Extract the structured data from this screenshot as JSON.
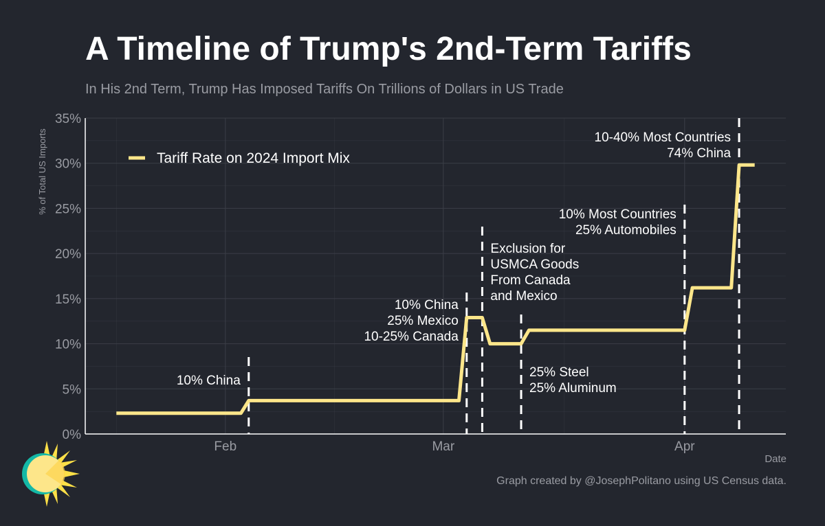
{
  "header": {
    "title": "A Timeline of Trump's 2nd-Term Tariffs",
    "subtitle": "In His 2nd Term, Trump Has Imposed Tariffs On Trillions of Dollars in US Trade"
  },
  "footer": {
    "caption": "Graph created by @JosephPolitano using US Census data."
  },
  "colors": {
    "background": "#23262e",
    "line": "#fde68a",
    "grid": "#3b3e47",
    "axis_text": "#9a9ca3"
  },
  "chart_data": {
    "type": "line",
    "title": "A Timeline of Trump's 2nd-Term Tariffs",
    "xlabel": "Date",
    "ylabel": "% of Total US Imports",
    "xlim": [
      "2025-01-14",
      "2025-04-14"
    ],
    "ylim": [
      0,
      35
    ],
    "y_ticks": [
      0,
      5,
      10,
      15,
      20,
      25,
      30,
      35
    ],
    "y_tick_labels": [
      "0%",
      "5%",
      "10%",
      "15%",
      "20%",
      "25%",
      "30%",
      "35%"
    ],
    "x_ticks": [
      "2025-02-01",
      "2025-03-01",
      "2025-04-01"
    ],
    "x_tick_labels": [
      "Feb",
      "Mar",
      "Apr"
    ],
    "grid": true,
    "legend": {
      "position": "top-left"
    },
    "series": [
      {
        "name": "Tariff Rate on 2024 Import Mix",
        "color": "#fde68a",
        "points": [
          [
            "2025-01-18",
            2.3
          ],
          [
            "2025-02-03",
            2.3
          ],
          [
            "2025-02-04",
            3.7
          ],
          [
            "2025-03-03",
            3.7
          ],
          [
            "2025-03-04",
            12.9
          ],
          [
            "2025-03-06",
            12.9
          ],
          [
            "2025-03-07",
            10.0
          ],
          [
            "2025-03-11",
            10.0
          ],
          [
            "2025-03-12",
            11.5
          ],
          [
            "2025-04-01",
            11.5
          ],
          [
            "2025-04-02",
            16.2
          ],
          [
            "2025-04-07",
            16.2
          ],
          [
            "2025-04-08",
            29.8
          ],
          [
            "2025-04-10",
            29.8
          ]
        ]
      }
    ],
    "annotations": [
      {
        "date": "2025-02-04",
        "lines": [
          "10% China"
        ],
        "align": "left"
      },
      {
        "date": "2025-03-04",
        "lines": [
          "10% China",
          "25% Mexico",
          "10-25% Canada"
        ],
        "align": "left"
      },
      {
        "date": "2025-03-06",
        "lines": [
          "Exclusion for",
          "USMCA Goods",
          "From Canada",
          "and Mexico"
        ],
        "align": "right"
      },
      {
        "date": "2025-03-11",
        "lines": [
          "25% Steel",
          "25% Aluminum"
        ],
        "align": "right"
      },
      {
        "date": "2025-04-01",
        "lines": [
          "10% Most Countries",
          "25% Automobiles"
        ],
        "align": "left"
      },
      {
        "date": "2025-04-08",
        "lines": [
          "10-40% Most Countries",
          "74% China"
        ],
        "align": "left"
      }
    ]
  }
}
